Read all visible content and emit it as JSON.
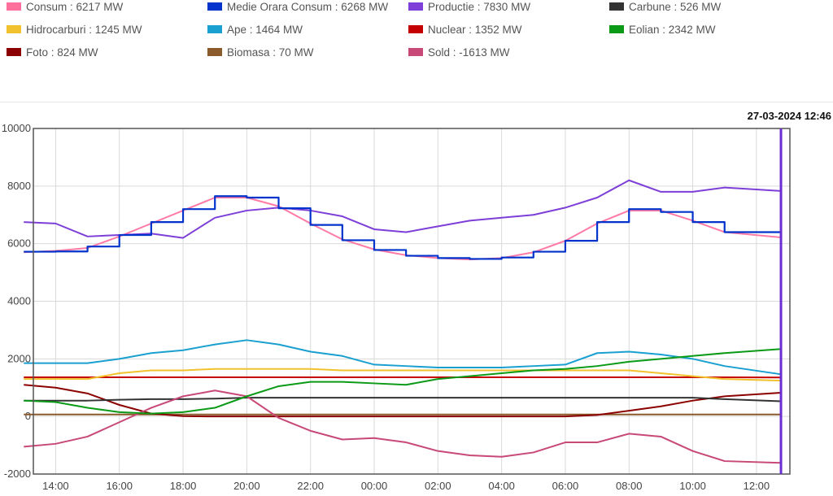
{
  "legend": {
    "items": [
      {
        "key": "consum",
        "label": "Consum : 6217 MW",
        "color": "#ff6f9c"
      },
      {
        "key": "medie",
        "label": "Medie Orara Consum : 6268 MW",
        "color": "#0033cc"
      },
      {
        "key": "productie",
        "label": "Productie : 7830 MW",
        "color": "#7d3fd8"
      },
      {
        "key": "carbune",
        "label": "Carbune : 526 MW",
        "color": "#333333"
      },
      {
        "key": "hidrocarburi",
        "label": "Hidrocarburi : 1245 MW",
        "color": "#f2c12e"
      },
      {
        "key": "ape",
        "label": "Ape : 1464 MW",
        "color": "#1aa0d0"
      },
      {
        "key": "nuclear",
        "label": "Nuclear : 1352 MW",
        "color": "#c40000"
      },
      {
        "key": "eolian",
        "label": "Eolian : 2342 MW",
        "color": "#0a9a16"
      },
      {
        "key": "foto",
        "label": "Foto : 824 MW",
        "color": "#8b0000"
      },
      {
        "key": "biomasa",
        "label": "Biomasa : 70 MW",
        "color": "#8b5a2b"
      },
      {
        "key": "sold",
        "label": "Sold : -1613 MW",
        "color": "#c84878"
      }
    ]
  },
  "timestamp": "27-03-2024 12:46",
  "chart_data": {
    "type": "line",
    "ylim": [
      -2000,
      10000
    ],
    "yticks": [
      "10000",
      "8000",
      "6000",
      "4000",
      "2000",
      "0",
      "-2000"
    ],
    "xticks": [
      "14:00",
      "16:00",
      "18:00",
      "20:00",
      "22:00",
      "00:00",
      "02:00",
      "04:00",
      "06:00",
      "08:00",
      "10:00",
      "12:00"
    ],
    "x_hours": [
      13,
      14,
      15,
      16,
      17,
      18,
      19,
      20,
      21,
      22,
      23,
      24,
      25,
      26,
      27,
      28,
      29,
      30,
      31,
      32,
      33,
      34,
      35,
      36.77
    ],
    "grid": true,
    "series": [
      {
        "name": "Consum",
        "color": "#ff7aa6",
        "values": [
          5700,
          5750,
          5850,
          6250,
          6700,
          7150,
          7600,
          7600,
          7300,
          6700,
          6150,
          5800,
          5600,
          5500,
          5450,
          5500,
          5700,
          6100,
          6700,
          7150,
          7150,
          6800,
          6400,
          6217
        ]
      },
      {
        "name": "Medie Orara Consum",
        "color": "#0033cc",
        "step": true,
        "values": [
          5720,
          5730,
          5900,
          6300,
          6750,
          7200,
          7650,
          7600,
          7230,
          6650,
          6120,
          5780,
          5580,
          5500,
          5470,
          5520,
          5720,
          6100,
          6750,
          7200,
          7100,
          6750,
          6400,
          6268
        ]
      },
      {
        "name": "Productie",
        "color": "#7d3fd8",
        "values": [
          6750,
          6700,
          6250,
          6300,
          6350,
          6200,
          6900,
          7150,
          7250,
          7150,
          6950,
          6500,
          6400,
          6600,
          6800,
          6900,
          7000,
          7250,
          7600,
          8200,
          7800,
          7800,
          7950,
          7830
        ]
      },
      {
        "name": "Ape",
        "color": "#1aa0d0",
        "values": [
          1850,
          1850,
          1850,
          2000,
          2200,
          2300,
          2500,
          2650,
          2500,
          2250,
          2100,
          1800,
          1750,
          1700,
          1700,
          1700,
          1750,
          1800,
          2200,
          2250,
          2150,
          2000,
          1750,
          1464
        ]
      },
      {
        "name": "Hidrocarburi",
        "color": "#f2c12e",
        "values": [
          1300,
          1300,
          1300,
          1500,
          1600,
          1600,
          1650,
          1650,
          1650,
          1650,
          1600,
          1600,
          1600,
          1600,
          1600,
          1600,
          1600,
          1600,
          1600,
          1600,
          1500,
          1400,
          1300,
          1245
        ]
      },
      {
        "name": "Nuclear",
        "color": "#c40000",
        "values": [
          1360,
          1360,
          1360,
          1360,
          1360,
          1360,
          1360,
          1360,
          1360,
          1360,
          1360,
          1360,
          1360,
          1360,
          1360,
          1360,
          1360,
          1360,
          1360,
          1360,
          1360,
          1360,
          1360,
          1352
        ]
      },
      {
        "name": "Eolian",
        "color": "#0a9a16",
        "values": [
          550,
          500,
          300,
          150,
          100,
          150,
          300,
          700,
          1050,
          1200,
          1200,
          1150,
          1100,
          1300,
          1400,
          1500,
          1600,
          1650,
          1750,
          1900,
          2000,
          2100,
          2200,
          2342
        ]
      },
      {
        "name": "Carbune",
        "color": "#333333",
        "values": [
          550,
          550,
          550,
          580,
          600,
          600,
          620,
          650,
          650,
          650,
          650,
          650,
          650,
          650,
          650,
          650,
          650,
          650,
          650,
          650,
          650,
          650,
          600,
          526
        ]
      },
      {
        "name": "Foto",
        "color": "#8b0000",
        "values": [
          1100,
          1000,
          800,
          400,
          100,
          10,
          0,
          0,
          0,
          0,
          0,
          0,
          0,
          0,
          0,
          0,
          0,
          0,
          50,
          200,
          350,
          550,
          700,
          824
        ]
      },
      {
        "name": "Biomasa",
        "color": "#8b5a2b",
        "values": [
          70,
          70,
          70,
          70,
          70,
          70,
          70,
          70,
          70,
          70,
          70,
          70,
          70,
          70,
          70,
          70,
          70,
          70,
          70,
          70,
          70,
          70,
          70,
          70
        ]
      },
      {
        "name": "Sold",
        "color": "#c84878",
        "values": [
          -1050,
          -950,
          -700,
          -200,
          300,
          700,
          900,
          700,
          -50,
          -500,
          -800,
          -750,
          -900,
          -1200,
          -1350,
          -1400,
          -1250,
          -900,
          -900,
          -600,
          -700,
          -1200,
          -1550,
          -1613
        ]
      }
    ]
  }
}
